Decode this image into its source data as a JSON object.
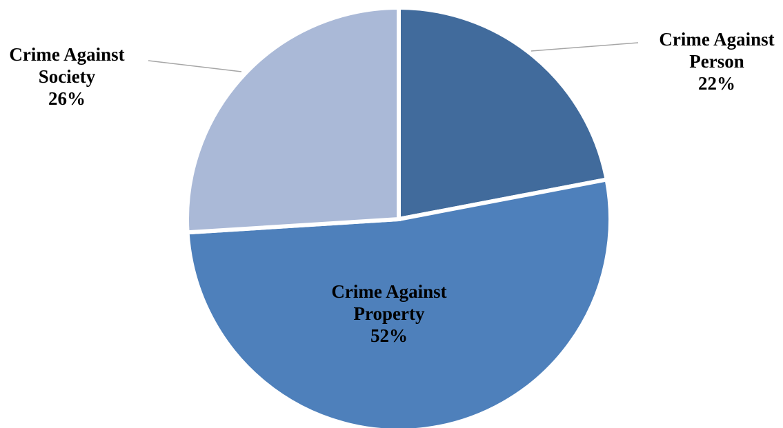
{
  "chart_data": {
    "type": "pie",
    "title": "",
    "legend": "none",
    "start_angle_deg": 0,
    "direction": "clockwise",
    "slices": [
      {
        "category": "Crime Against Person",
        "label_lines": [
          "Crime Against",
          "Person"
        ],
        "value": 22,
        "label_pct": "22%",
        "color": "#416b9c"
      },
      {
        "category": "Crime Against Property",
        "label_lines": [
          "Crime Against",
          "Property"
        ],
        "value": 52,
        "label_pct": "52%",
        "color": "#4e80bb"
      },
      {
        "category": "Crime Against Society",
        "label_lines": [
          "Crime Against",
          "Society"
        ],
        "value": 26,
        "label_pct": "26%",
        "color": "#aab9d7"
      }
    ]
  }
}
